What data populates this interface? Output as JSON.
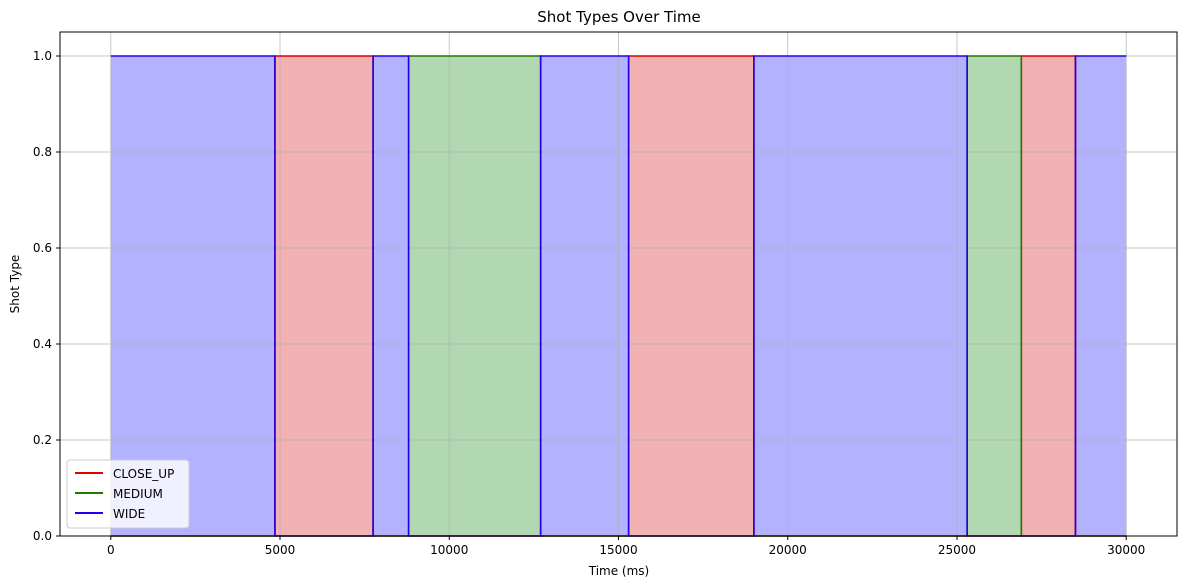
{
  "chart_data": {
    "type": "area",
    "title": "Shot Types Over Time",
    "xlabel": "Time (ms)",
    "ylabel": "Shot Type",
    "xlim": [
      -1500,
      31500
    ],
    "ylim": [
      0,
      1.05
    ],
    "x_ticks": [
      0,
      5000,
      10000,
      15000,
      20000,
      25000,
      30000
    ],
    "y_ticks": [
      "0.0",
      "0.2",
      "0.4",
      "0.6",
      "0.8",
      "1.0"
    ],
    "grid": true,
    "legend_position": "lower-left",
    "series": [
      {
        "name": "CLOSE_UP",
        "color": "#e00000",
        "fill": "#f2b2b4"
      },
      {
        "name": "MEDIUM",
        "color": "#1f7a00",
        "fill": "#b2d8b2"
      },
      {
        "name": "WIDE",
        "color": "#2200ee",
        "fill": "#b2b2ff"
      }
    ],
    "segments": [
      {
        "start": 0,
        "end": 4850,
        "shot": "WIDE"
      },
      {
        "start": 4850,
        "end": 7750,
        "shot": "CLOSE_UP"
      },
      {
        "start": 7750,
        "end": 8800,
        "shot": "WIDE"
      },
      {
        "start": 8800,
        "end": 12700,
        "shot": "MEDIUM"
      },
      {
        "start": 12700,
        "end": 15300,
        "shot": "WIDE"
      },
      {
        "start": 15300,
        "end": 19000,
        "shot": "CLOSE_UP"
      },
      {
        "start": 19000,
        "end": 25300,
        "shot": "WIDE"
      },
      {
        "start": 25300,
        "end": 26900,
        "shot": "MEDIUM"
      },
      {
        "start": 26900,
        "end": 28500,
        "shot": "CLOSE_UP"
      },
      {
        "start": 28500,
        "end": 30000,
        "shot": "WIDE"
      }
    ]
  }
}
